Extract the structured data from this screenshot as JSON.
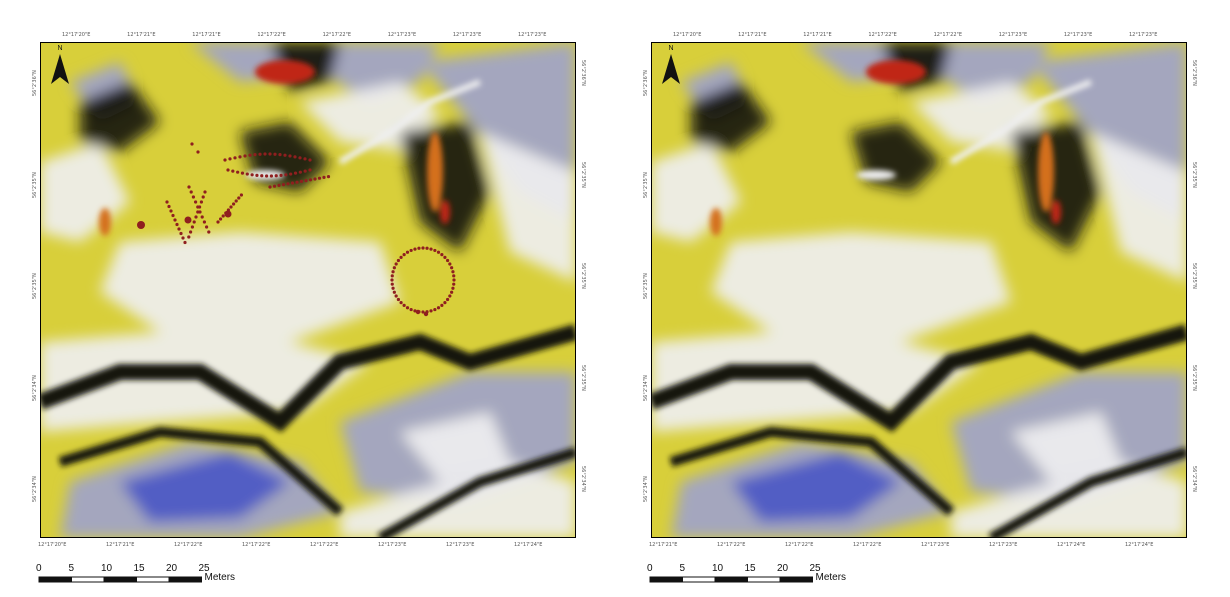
{
  "maps": [
    {
      "id": "left",
      "top_ticks": [
        "12°17'20\"E",
        "12°17'21\"E",
        "12°17'21\"E",
        "12°17'22\"E",
        "12°17'22\"E",
        "12°17'23\"E",
        "12°17'23\"E",
        "12°17'23\"E"
      ],
      "bottom_ticks": [
        "12°17'20\"E",
        "12°17'21\"E",
        "12°17'22\"E",
        "12°17'22\"E",
        "12°17'22\"E",
        "12°17'23\"E",
        "12°17'23\"E",
        "12°17'24\"E"
      ],
      "left_ticks": [
        "56°2'36\"N",
        "56°2'35\"N",
        "56°2'35\"N",
        "56°2'34\"N",
        "56°2'34\"N"
      ],
      "right_ticks": [
        "56°2'36\"N",
        "56°2'35\"N",
        "56°2'35\"N",
        "56°2'35\"N",
        "56°2'34\"N"
      ],
      "show_points": true
    },
    {
      "id": "right",
      "top_ticks": [
        "12°17'20\"E",
        "12°17'21\"E",
        "12°17'21\"E",
        "12°17'22\"E",
        "12°17'22\"E",
        "12°17'23\"E",
        "12°17'23\"E",
        "12°17'23\"E"
      ],
      "bottom_ticks": [
        "12°17'21\"E",
        "12°17'22\"E",
        "12°17'22\"E",
        "12°17'22\"E",
        "12°17'23\"E",
        "12°17'23\"E",
        "12°17'24\"E",
        "12°17'24\"E"
      ],
      "left_ticks": [
        "56°2'36\"N",
        "56°2'35\"N",
        "56°2'35\"N",
        "56°2'34\"N",
        "56°2'34\"N"
      ],
      "right_ticks": [
        "56°2'36\"N",
        "56°2'35\"N",
        "56°2'35\"N",
        "56°2'35\"N",
        "56°2'34\"N"
      ],
      "show_points": false
    }
  ],
  "north_arrow_label": "N",
  "scalebar": {
    "ticks": [
      "0",
      "5",
      "10",
      "15",
      "20",
      "25"
    ],
    "unit": "Meters"
  },
  "colors": {
    "yellow": "#d8cf3a",
    "white": "#efeff0",
    "lavender": "#9fa3c9",
    "blue": "#4a58c4",
    "dark": "#141408",
    "orange": "#d4701c",
    "red": "#c02818",
    "point": "#8f1f1f"
  }
}
